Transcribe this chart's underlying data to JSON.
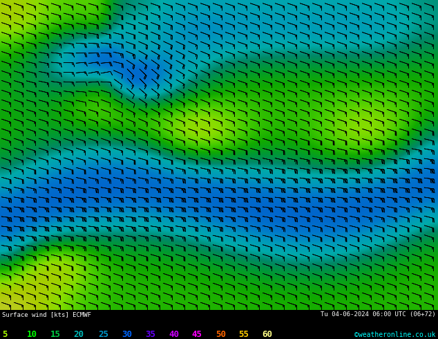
{
  "title": "Surface wind [kts] ECMWF",
  "datetime_label": "Tu 04-06-2024 06:00 UTC (06+72)",
  "colorbar_values": [
    5,
    10,
    15,
    20,
    25,
    30,
    35,
    40,
    45,
    50,
    55,
    60
  ],
  "legend_colors": [
    "#aaff00",
    "#00ff00",
    "#00cc44",
    "#00aaaa",
    "#0088cc",
    "#0055ff",
    "#6600cc",
    "#aa00ff",
    "#ff00ff",
    "#ff6600",
    "#ffcc00",
    "#ffff88"
  ],
  "legend_text_colors": [
    "#aaff00",
    "#00ff00",
    "#00cc88",
    "#00bbff",
    "#0077ff",
    "#0033ff",
    "#cc00ff",
    "#ff00ff",
    "#ff6600",
    "#ffcc00",
    "#dddd00",
    "#aaaaaa"
  ],
  "cmap_colors": [
    "#ccff00",
    "#88ff00",
    "#00dd00",
    "#00aa44",
    "#00ccaa",
    "#00aacc",
    "#0088ff",
    "#0055ff",
    "#4400cc",
    "#8800cc",
    "#cc00cc",
    "#ff88ff"
  ],
  "background_color": "#000000",
  "copyright": "©weatheronline.co.uk",
  "figsize": [
    6.34,
    4.9
  ],
  "dpi": 100,
  "map_yellow": "#cccc00",
  "map_yellowgreen": "#aacc00",
  "map_limegreen": "#66cc00",
  "map_green": "#00aa00",
  "map_cyan": "#00aaaa",
  "map_blue": "#0066cc"
}
